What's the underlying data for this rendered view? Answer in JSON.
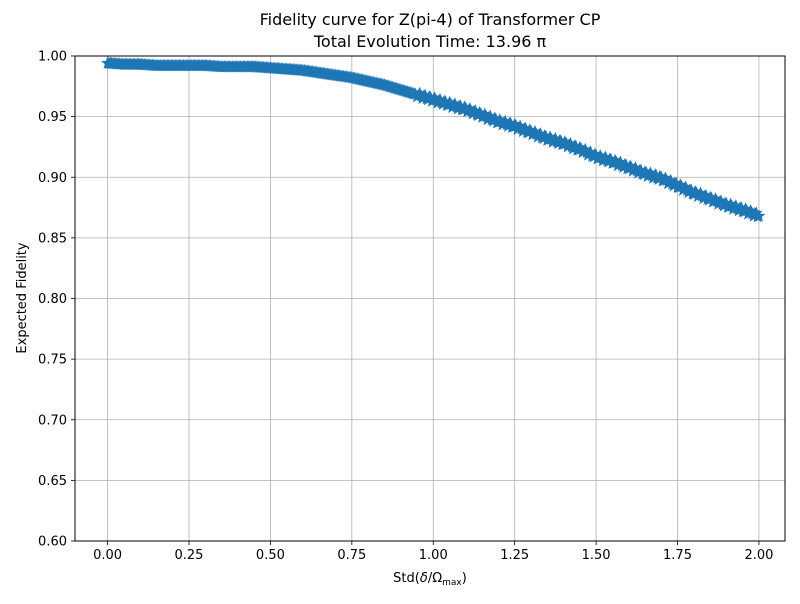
{
  "chart_data": {
    "type": "scatter",
    "title_line1": "Fidelity curve for Z(pi-4) of Transformer CP",
    "title_line2": "Total Evolution Time: 13.96 π",
    "xlabel_prefix": "Std(",
    "xlabel_delta": "δ",
    "xlabel_slash": "/Ω",
    "xlabel_sub": "max",
    "xlabel_suffix": ")",
    "ylabel": "Expected Fidelity",
    "xlim": [
      -0.1,
      2.08
    ],
    "ylim": [
      0.6,
      1.0
    ],
    "xticks": [
      0.0,
      0.25,
      0.5,
      0.75,
      1.0,
      1.25,
      1.5,
      1.75,
      2.0
    ],
    "xtick_labels": [
      "0.00",
      "0.25",
      "0.50",
      "0.75",
      "1.00",
      "1.25",
      "1.50",
      "1.75",
      "2.00"
    ],
    "yticks": [
      0.6,
      0.65,
      0.7,
      0.75,
      0.8,
      0.85,
      0.9,
      0.95,
      1.0
    ],
    "ytick_labels": [
      "0.60",
      "0.65",
      "0.70",
      "0.75",
      "0.80",
      "0.85",
      "0.90",
      "0.95",
      "1.00"
    ],
    "grid": true,
    "marker": "star",
    "color": "#1f77b4",
    "x": [
      0.0,
      0.05,
      0.1,
      0.15,
      0.2,
      0.25,
      0.3,
      0.35,
      0.4,
      0.45,
      0.5,
      0.55,
      0.6,
      0.65,
      0.7,
      0.75,
      0.8,
      0.85,
      0.9,
      0.95,
      1.0,
      1.05,
      1.1,
      1.15,
      1.2,
      1.25,
      1.3,
      1.35,
      1.4,
      1.45,
      1.5,
      1.55,
      1.6,
      1.65,
      1.7,
      1.75,
      1.8,
      1.85,
      1.9,
      1.95,
      2.0
    ],
    "y": [
      0.994,
      0.993,
      0.993,
      0.992,
      0.992,
      0.992,
      0.992,
      0.991,
      0.991,
      0.991,
      0.99,
      0.989,
      0.988,
      0.986,
      0.984,
      0.982,
      0.979,
      0.976,
      0.972,
      0.968,
      0.964,
      0.96,
      0.956,
      0.951,
      0.946,
      0.942,
      0.937,
      0.932,
      0.928,
      0.923,
      0.917,
      0.913,
      0.908,
      0.903,
      0.899,
      0.893,
      0.887,
      0.882,
      0.877,
      0.873,
      0.868
    ]
  }
}
